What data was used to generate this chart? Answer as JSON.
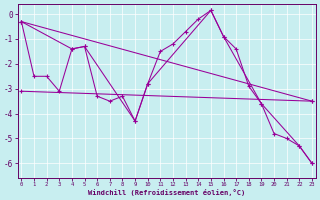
{
  "bg_color": "#c8eef0",
  "line_color": "#990099",
  "grid_color": "#ffffff",
  "xlim": [
    -0.3,
    23.3
  ],
  "ylim": [
    -6.6,
    0.4
  ],
  "yticks": [
    0,
    -1,
    -2,
    -3,
    -4,
    -5,
    -6
  ],
  "xticks": [
    0,
    1,
    2,
    3,
    4,
    5,
    6,
    7,
    8,
    9,
    10,
    11,
    12,
    13,
    14,
    15,
    16,
    17,
    18,
    19,
    20,
    21,
    22,
    23
  ],
  "xlabel": "Windchill (Refroidissement éolien,°C)",
  "series1_x": [
    0,
    1,
    2,
    3,
    4,
    5,
    6,
    7,
    8,
    9,
    10,
    11,
    12,
    13,
    14,
    15,
    16,
    17,
    18,
    19,
    20,
    21,
    22,
    23
  ],
  "series1_y": [
    -0.3,
    -2.5,
    -2.5,
    -3.1,
    -1.4,
    -1.3,
    -3.3,
    -3.5,
    -3.3,
    -4.3,
    -2.8,
    -1.5,
    -1.2,
    -0.7,
    -0.2,
    0.15,
    -0.9,
    -1.4,
    -2.9,
    -3.6,
    -4.8,
    -5.0,
    -5.3,
    -6.0
  ],
  "series2_x": [
    0,
    4,
    5,
    9,
    10,
    15,
    16,
    19,
    22,
    23
  ],
  "series2_y": [
    -0.3,
    -1.4,
    -1.3,
    -4.3,
    -2.8,
    0.15,
    -0.9,
    -3.6,
    -5.3,
    -6.0
  ],
  "series3_x": [
    0,
    23
  ],
  "series3_y": [
    -0.3,
    -3.5
  ],
  "series4_x": [
    0,
    23
  ],
  "series4_y": [
    -3.1,
    -3.5
  ],
  "ytick_labels": [
    "0",
    "-1",
    "-2",
    "-3",
    "-4",
    "-5",
    "-6"
  ]
}
